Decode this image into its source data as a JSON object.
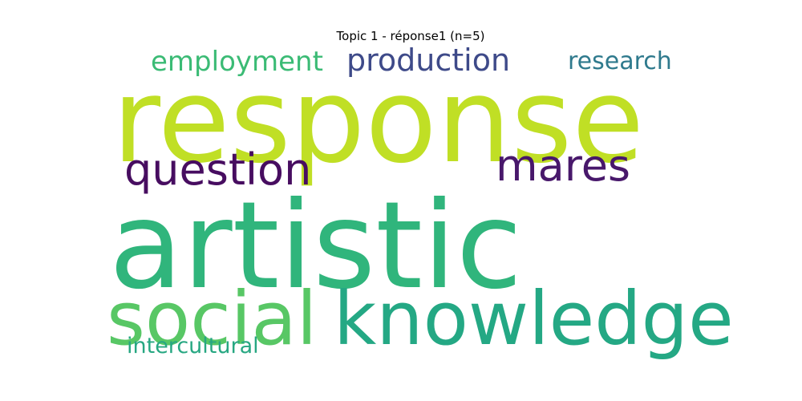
{
  "chart_data": {
    "type": "wordcloud",
    "title": "Topic 1 - réponse1 (n=5)",
    "words": [
      {
        "id": "response",
        "text": "response",
        "weight": 1.0,
        "color": "#c0df25"
      },
      {
        "id": "artistic",
        "text": "artistic",
        "weight": 1.0,
        "color": "#30b57c"
      },
      {
        "id": "knowledge",
        "text": "knowledge",
        "weight": 0.62,
        "color": "#24a884"
      },
      {
        "id": "social",
        "text": "social",
        "weight": 0.62,
        "color": "#58c765"
      },
      {
        "id": "question",
        "text": "question",
        "weight": 0.36,
        "color": "#470d60"
      },
      {
        "id": "mares",
        "text": "mares",
        "weight": 0.36,
        "color": "#48186b"
      },
      {
        "id": "production",
        "text": "production",
        "weight": 0.25,
        "color": "#3e4a89"
      },
      {
        "id": "employment",
        "text": "employment",
        "weight": 0.23,
        "color": "#3bbb75"
      },
      {
        "id": "research",
        "text": "research",
        "weight": 0.2,
        "color": "#2f7a8d"
      },
      {
        "id": "intercultural",
        "text": "intercultural",
        "weight": 0.18,
        "color": "#27a782"
      }
    ]
  }
}
